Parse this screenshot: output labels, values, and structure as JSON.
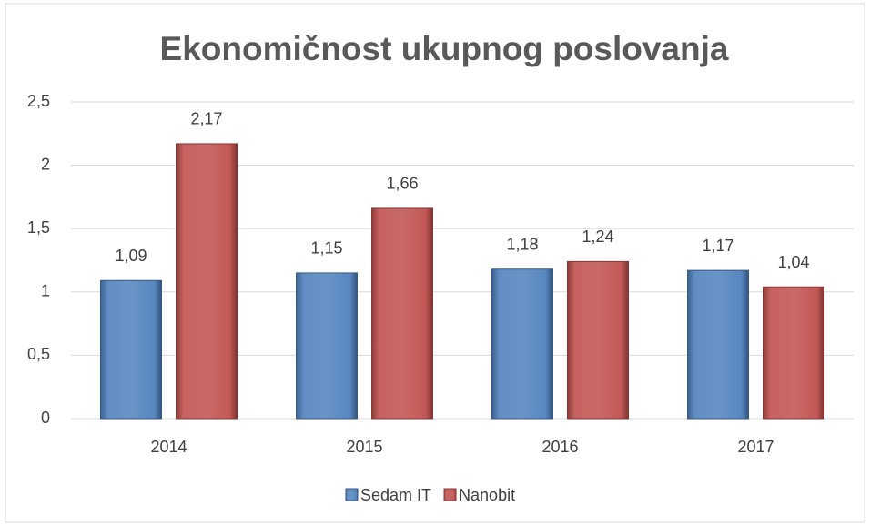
{
  "chart_data": {
    "type": "bar",
    "title": "Ekonomičnost ukupnog poslovanja",
    "categories": [
      "2014",
      "2015",
      "2016",
      "2017"
    ],
    "series": [
      {
        "name": "Sedam IT",
        "color": "#4f81bd",
        "values": [
          1.09,
          1.15,
          1.18,
          1.17
        ],
        "value_labels": [
          "1,09",
          "1,15",
          "1,18",
          "1,17"
        ]
      },
      {
        "name": "Nanobit",
        "color": "#c0504d",
        "values": [
          2.17,
          1.66,
          1.24,
          1.04
        ],
        "value_labels": [
          "2,17",
          "1,66",
          "1,24",
          "1,04"
        ]
      }
    ],
    "ylim": [
      0,
      2.5
    ],
    "yticks": [
      0,
      {
        "value": 0.5,
        "label": "0,5"
      },
      1,
      {
        "value": 1.5,
        "label": "1,5"
      },
      2,
      {
        "value": 2.5,
        "label": "2,5"
      }
    ],
    "grid": true,
    "legend": "bottom"
  }
}
